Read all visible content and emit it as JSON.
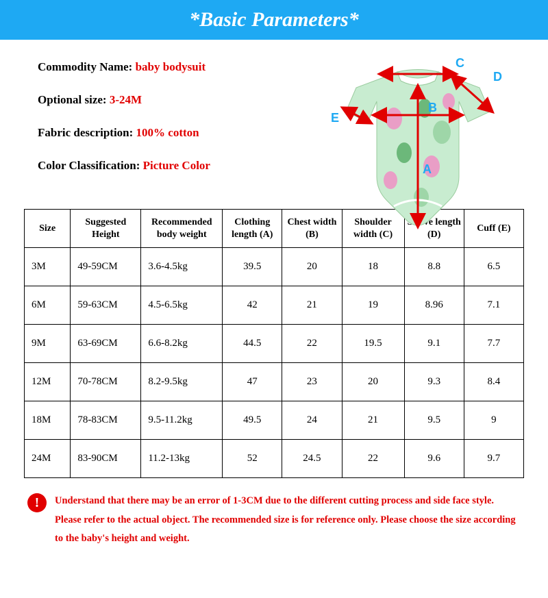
{
  "header": {
    "title": "*Basic Parameters*"
  },
  "info": {
    "commodity_label": "Commodity Name: ",
    "commodity_value": "baby bodysuit",
    "size_label": "Optional size: ",
    "size_value": "3-24M",
    "fabric_label": "Fabric description: ",
    "fabric_value": "100% cotton",
    "color_label": "Color Classification: ",
    "color_value": "Picture Color"
  },
  "diagram": {
    "labels": {
      "a": "A",
      "b": "B",
      "c": "C",
      "d": "D",
      "e": "E"
    },
    "bodysuit_fill": "#c8ecd0",
    "bodysuit_stroke": "#9acb9e",
    "accent1": "#e99ec6",
    "accent2": "#6cb87a",
    "arrow_color": "#e10000",
    "label_color": "#1ea9f3"
  },
  "table": {
    "headers": [
      "Size",
      "Suggested Height",
      "Recommended body weight",
      "Clothing length (A)",
      "Chest width (B)",
      "Shoulder width (C)",
      "Sleeve length (D)",
      "Cuff (E)"
    ],
    "rows": [
      [
        "3M",
        "49-59CM",
        "3.6-4.5kg",
        "39.5",
        "20",
        "18",
        "8.8",
        "6.5"
      ],
      [
        "6M",
        "59-63CM",
        "4.5-6.5kg",
        "42",
        "21",
        "19",
        "8.96",
        "7.1"
      ],
      [
        "9M",
        "63-69CM",
        "6.6-8.2kg",
        "44.5",
        "22",
        "19.5",
        "9.1",
        "7.7"
      ],
      [
        "12M",
        "70-78CM",
        "8.2-9.5kg",
        "47",
        "23",
        "20",
        "9.3",
        "8.4"
      ],
      [
        "18M",
        "78-83CM",
        "9.5-11.2kg",
        "49.5",
        "24",
        "21",
        "9.5",
        "9"
      ],
      [
        "24M",
        "83-90CM",
        "11.2-13kg",
        "52",
        "24.5",
        "22",
        "9.6",
        "9.7"
      ]
    ],
    "border_color": "#000000",
    "text_color": "#000000",
    "font_size": 15
  },
  "note": {
    "icon": "!",
    "text": "Understand that there may be an error of 1-3CM due to the different cutting process and side face style. Please refer to the actual object. The recommended size is for reference only. Please choose the size according to the baby's height and weight.",
    "color": "#e10000"
  },
  "colors": {
    "header_bg": "#1ea9f3",
    "header_text": "#ffffff",
    "value_text": "#e10000",
    "label_text": "#000000",
    "page_bg": "#ffffff"
  }
}
